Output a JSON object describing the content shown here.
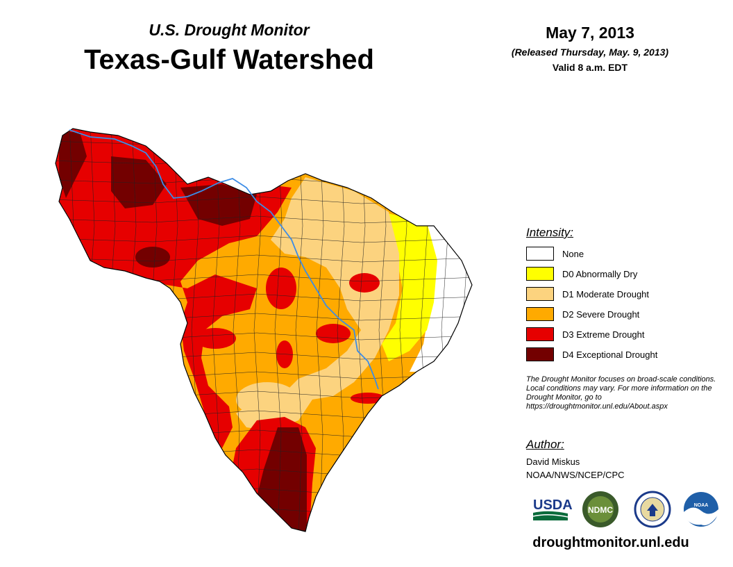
{
  "header": {
    "subtitle": "U.S. Drought Monitor",
    "title": "Texas-Gulf Watershed",
    "date": "May 7, 2013",
    "released": "(Released Thursday, May. 9, 2013)",
    "valid": "Valid 8 a.m. EDT"
  },
  "legend": {
    "heading": "Intensity:",
    "items": [
      {
        "label": "None",
        "color": "#ffffff"
      },
      {
        "label": "D0 Abnormally Dry",
        "color": "#ffff00"
      },
      {
        "label": "D1 Moderate Drought",
        "color": "#fcd37f"
      },
      {
        "label": "D2 Severe Drought",
        "color": "#ffaa00"
      },
      {
        "label": "D3 Extreme Drought",
        "color": "#e60000"
      },
      {
        "label": "D4 Exceptional Drought",
        "color": "#730000"
      }
    ]
  },
  "note": "The Drought Monitor focuses on broad-scale conditions. Local conditions may vary. For more information on the Drought Monitor, go to https://droughtmonitor.unl.edu/About.aspx",
  "author": {
    "heading": "Author:",
    "name": "David Miskus",
    "org": "NOAA/NWS/NCEP/CPC"
  },
  "logos": {
    "usda": "USDA",
    "ndmc": "NDMC",
    "noaa": "NOAA"
  },
  "website": "droughtmonitor.unl.edu",
  "colors": {
    "river": "#3c8ce6",
    "county_line": "#222222"
  }
}
